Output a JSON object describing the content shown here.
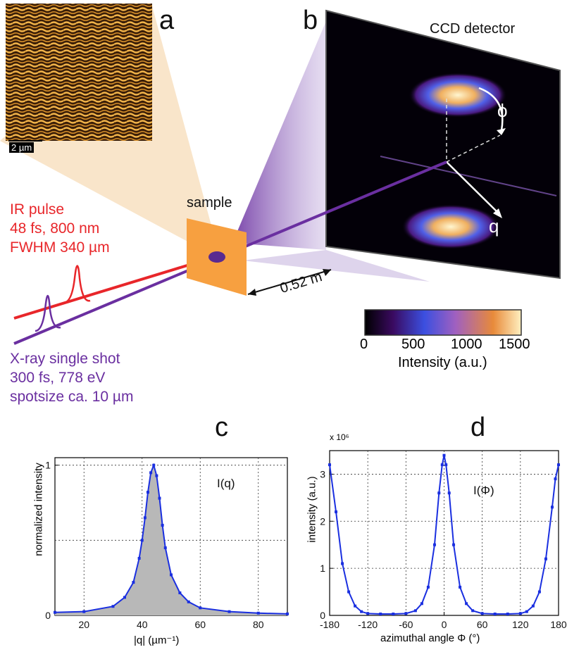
{
  "panel_a": {
    "letter": "a",
    "scale_label": "2 µm"
  },
  "panel_b": {
    "letter": "b",
    "detector_label": "CCD detector",
    "phi_label": "ϕ",
    "q_label": "q",
    "distance_label": "0.52 m",
    "sample_label": "sample",
    "colorbar": {
      "ticks": [
        "0",
        "500",
        "1000",
        "1500"
      ],
      "title": "Intensity (a.u.)",
      "stops": [
        "#000000",
        "#3a0a60",
        "#3b4fe0",
        "#a060c0",
        "#e88a3a",
        "#fff0c0"
      ]
    }
  },
  "ir_pulse": {
    "line1": "IR pulse",
    "line2": "48 fs, 800 nm",
    "line3": "FWHM 340 µm",
    "color": "#e8262a"
  },
  "xray": {
    "line1": "X-ray single shot",
    "line2": "300 fs, 778 eV",
    "line3": "spotsize ca. 10 µm",
    "color": "#6a2fa0"
  },
  "panel_c": {
    "letter": "c",
    "annotation": "I(q)",
    "ylabel": "normalized intensity",
    "xlabel": "|q| (µm⁻¹)"
  },
  "panel_d": {
    "letter": "d",
    "annotation": "I(Φ)",
    "ylabel": "intensity (a.u.)",
    "xlabel": "azimuthal angle Φ (°)",
    "multiplier": "x 10⁶"
  },
  "chart_data": [
    {
      "type": "area",
      "title": "c",
      "xlabel": "|q| (µm⁻¹)",
      "ylabel": "normalized intensity",
      "xlim": [
        10,
        90
      ],
      "ylim": [
        0,
        1.05
      ],
      "xticks": [
        "20",
        "40",
        "60",
        "80"
      ],
      "yticks": [
        "0",
        "1"
      ],
      "grid": true,
      "series": [
        {
          "name": "I(q)",
          "x": [
            10,
            20,
            30,
            34,
            37,
            39,
            40,
            41,
            42,
            43,
            44,
            45,
            46,
            47,
            48,
            50,
            53,
            56,
            60,
            70,
            80,
            90
          ],
          "values": [
            0.02,
            0.025,
            0.06,
            0.12,
            0.22,
            0.38,
            0.5,
            0.65,
            0.82,
            0.95,
            1.0,
            0.93,
            0.78,
            0.6,
            0.45,
            0.27,
            0.15,
            0.09,
            0.05,
            0.025,
            0.015,
            0.01
          ]
        }
      ]
    },
    {
      "type": "line",
      "title": "d",
      "xlabel": "azimuthal angle Φ (°)",
      "ylabel": "intensity (a.u.)",
      "xlim": [
        -180,
        180
      ],
      "ylim": [
        0,
        3.5
      ],
      "xticks": [
        "-180",
        "-120",
        "-60",
        "0",
        "60",
        "120",
        "180"
      ],
      "yticks": [
        "0",
        "1",
        "2",
        "3"
      ],
      "grid": true,
      "series": [
        {
          "name": "I(Φ)",
          "x": [
            -180,
            -170,
            -160,
            -150,
            -140,
            -130,
            -120,
            -100,
            -80,
            -60,
            -45,
            -35,
            -25,
            -15,
            -8,
            -3,
            0,
            3,
            8,
            15,
            25,
            35,
            45,
            60,
            80,
            100,
            120,
            130,
            140,
            150,
            160,
            170,
            175,
            180
          ],
          "values": [
            3.2,
            2.2,
            1.1,
            0.5,
            0.2,
            0.08,
            0.04,
            0.03,
            0.03,
            0.04,
            0.1,
            0.25,
            0.6,
            1.5,
            2.6,
            3.2,
            3.4,
            3.2,
            2.6,
            1.5,
            0.6,
            0.25,
            0.1,
            0.04,
            0.03,
            0.03,
            0.04,
            0.08,
            0.2,
            0.5,
            1.2,
            2.3,
            2.9,
            3.2
          ]
        }
      ]
    }
  ]
}
